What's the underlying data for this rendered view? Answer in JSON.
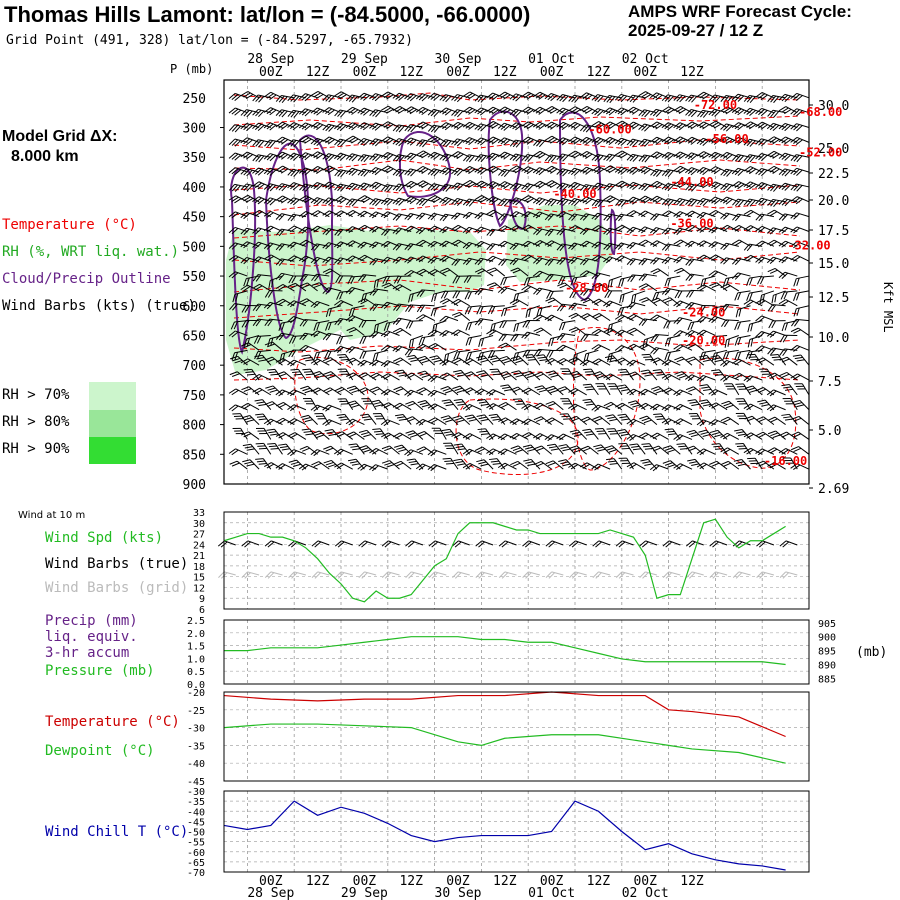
{
  "header": {
    "title": "Thomas Hills Lamont:  lat/lon = (-84.5000, -66.0000)",
    "grid_point": "Grid Point (491, 328) lat/lon = (-84.5297, -65.7932)",
    "cycle_line1": "AMPS WRF Forecast Cycle:",
    "cycle_line2": "2025-09-27 / 12  Z"
  },
  "model_grid": {
    "line1": "Model Grid ΔX:",
    "line2": "8.000 km"
  },
  "legend": {
    "temperature": "Temperature (°C)",
    "rh": "RH (%, WRT liq. wat.)",
    "cloud": "Cloud/Precip Outline",
    "barbs": "Wind Barbs (kts) (true)",
    "rh70": "RH > 70%",
    "rh80": "RH > 80%",
    "rh90": "RH > 90%"
  },
  "colors": {
    "temp_red": "#ee0000",
    "rh_green": "#22aa22",
    "cloud_purple": "#662288",
    "rh70": "#ccf5cc",
    "rh80": "#99e699",
    "rh90": "#33dd33",
    "wind_speed": "#22bb22",
    "dewpoint": "#22bb22",
    "temperature": "#cc0000",
    "wind_chill": "#0000aa",
    "grid_barbs": "#bbbbbb"
  },
  "time_axis": {
    "hour_labels": [
      "00Z",
      "12Z",
      "00Z",
      "12Z",
      "00Z",
      "12Z",
      "00Z",
      "12Z",
      "00Z",
      "12Z"
    ],
    "date_labels": [
      "28 Sep",
      "29 Sep",
      "30 Sep",
      "01 Oct",
      "02 Oct"
    ]
  },
  "labels": {
    "p_axis": "P (mb)",
    "kft": "Kft MSL",
    "mb_unit": "(mb)",
    "wind10": "Wind at 10 m",
    "wind_spd": "Wind Spd (kts)",
    "barbs_true": "Wind Barbs (true)",
    "barbs_grid": "Wind Barbs (grid)",
    "precip1": "Precip (mm)",
    "precip2": "liq. equiv.",
    "precip3": "3-hr accum",
    "pressure": "Pressure (mb)",
    "temperature": "Temperature (°C)",
    "dewpoint": "Dewpoint (°C)",
    "windchill": "Wind Chill T (°C)"
  },
  "chart_data": [
    {
      "type": "heatmap",
      "name": "cross-section",
      "y_pressure_ticks": [
        "250",
        "300",
        "350",
        "400",
        "450",
        "500",
        "550",
        "600",
        "650",
        "700",
        "750",
        "800",
        "850",
        "900"
      ],
      "y_height_kft": [
        "30.0",
        "25.0",
        "22.5",
        "20.0",
        "17.5",
        "15.0",
        "12.5",
        "10.0",
        "7.5",
        "5.0",
        "2.69"
      ],
      "ylim_mb": [
        900,
        220
      ],
      "temperature_contour_labels": [
        {
          "text": "-72.00",
          "hour": 21,
          "p": 260
        },
        {
          "text": "-68.00",
          "hour": 25.5,
          "p": 272
        },
        {
          "text": "-64.00",
          "hour": 31,
          "p": 295
        },
        {
          "text": "-60.00",
          "hour": 16.5,
          "p": 302
        },
        {
          "text": "-56.00",
          "hour": 21.5,
          "p": 318
        },
        {
          "text": "-52.00",
          "hour": 25.5,
          "p": 340
        },
        {
          "text": "-48.00",
          "hour": 31,
          "p": 375
        },
        {
          "text": "-44.00",
          "hour": 20,
          "p": 390
        },
        {
          "text": "-40.00",
          "hour": 15,
          "p": 410
        },
        {
          "text": "-36.00",
          "hour": 20,
          "p": 460
        },
        {
          "text": "-32.00",
          "hour": 25,
          "p": 497
        },
        {
          "text": "-28.00",
          "hour": 15.5,
          "p": 568
        },
        {
          "text": "-24.00",
          "hour": 20.5,
          "p": 610
        },
        {
          "text": "-20.00",
          "hour": 20.5,
          "p": 657
        },
        {
          "text": "-16.00",
          "hour": 24,
          "p": 860
        }
      ]
    },
    {
      "type": "line",
      "name": "wind-10m",
      "y_ticks": [
        "33",
        "30",
        "27",
        "24",
        "21",
        "18",
        "15",
        "12",
        "9",
        "6"
      ],
      "ylim": [
        6,
        33
      ],
      "series": [
        {
          "name": "Wind Spd (kts)",
          "x_hours": [
            0,
            3,
            6,
            9,
            12,
            15,
            18,
            21,
            24,
            27,
            30,
            33,
            36,
            39,
            42,
            45,
            48,
            51,
            54,
            57,
            60,
            63,
            66,
            69,
            72,
            75,
            78,
            81,
            84,
            87,
            90,
            93,
            96,
            99,
            102,
            105,
            108,
            111,
            114,
            117,
            120,
            123,
            126,
            129,
            132,
            135,
            138,
            141,
            144
          ],
          "values": [
            25,
            26,
            27,
            27,
            26,
            26,
            25,
            23,
            20,
            16,
            13,
            9,
            8,
            11,
            9,
            9,
            10,
            14,
            18,
            20,
            27,
            30,
            30,
            30,
            29,
            28,
            28,
            27,
            27,
            27,
            27,
            27,
            27,
            28,
            27,
            26,
            21,
            9,
            10,
            10,
            20,
            30,
            31,
            26,
            23,
            25,
            25,
            27,
            29
          ]
        }
      ]
    },
    {
      "type": "line",
      "name": "precip-pressure",
      "y_ticks_left": [
        "2.5",
        "2.0",
        "1.5",
        "1.0",
        "0.5",
        "0.0"
      ],
      "y_ticks_right": [
        "905",
        "900",
        "895",
        "890",
        "885"
      ],
      "ylim": [
        0,
        2.5
      ],
      "ylim_right": [
        883,
        906
      ],
      "series": [
        {
          "name": "Pressure (mb)",
          "x_hours": [
            0,
            6,
            12,
            18,
            24,
            30,
            36,
            42,
            48,
            54,
            60,
            66,
            72,
            78,
            84,
            90,
            96,
            102,
            108,
            114,
            120,
            126,
            132,
            138,
            144
          ],
          "values": [
            895,
            895,
            896,
            896,
            896,
            897,
            898,
            899,
            900,
            900,
            900,
            899,
            899,
            898,
            898,
            896,
            894,
            892,
            891,
            891,
            891,
            891,
            891,
            891,
            890
          ]
        }
      ]
    },
    {
      "type": "line",
      "name": "temperature-dewpoint",
      "y_ticks": [
        "-20",
        "-25",
        "-30",
        "-35",
        "-40",
        "-45"
      ],
      "ylim": [
        -45,
        -20
      ],
      "series": [
        {
          "name": "Temperature (°C)",
          "x_hours": [
            0,
            12,
            24,
            36,
            48,
            60,
            72,
            84,
            96,
            108,
            114,
            120,
            132,
            144
          ],
          "values": [
            -21,
            -22,
            -22.5,
            -22,
            -22,
            -21,
            -21,
            -20,
            -21,
            -21,
            -25,
            -25.5,
            -27,
            -32.5
          ]
        },
        {
          "name": "Dewpoint (°C)",
          "x_hours": [
            0,
            12,
            24,
            36,
            48,
            60,
            66,
            72,
            84,
            96,
            108,
            114,
            120,
            132,
            144
          ],
          "values": [
            -30,
            -29,
            -29,
            -29.5,
            -30,
            -34,
            -35,
            -33,
            -32,
            -32,
            -34,
            -35,
            -36,
            -37,
            -40
          ]
        }
      ]
    },
    {
      "type": "line",
      "name": "wind-chill",
      "y_ticks": [
        "-30",
        "-35",
        "-40",
        "-45",
        "-50",
        "-55",
        "-60",
        "-65",
        "-70"
      ],
      "ylim": [
        -70,
        -30
      ],
      "series": [
        {
          "name": "Wind Chill T (°C)",
          "x_hours": [
            0,
            6,
            12,
            18,
            24,
            30,
            36,
            42,
            48,
            54,
            60,
            66,
            72,
            78,
            84,
            90,
            96,
            102,
            108,
            114,
            120,
            126,
            132,
            138,
            144
          ],
          "values": [
            -47,
            -49,
            -47,
            -35,
            -42,
            -38,
            -41,
            -46,
            -52,
            -55,
            -53,
            -52,
            -52,
            -52,
            -50,
            -35,
            -40,
            -50,
            -59,
            -56,
            -61,
            -64,
            -66,
            -67,
            -69
          ]
        }
      ]
    }
  ]
}
